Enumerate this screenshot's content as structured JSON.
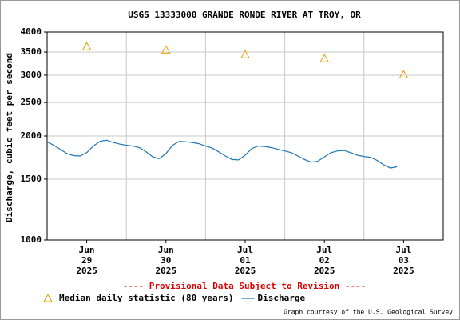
{
  "chart_data": {
    "type": "line",
    "title": "USGS 13333000 GRANDE RONDE RIVER AT TROY, OR",
    "ylabel": "Discharge, cubic feet per second",
    "notice": "---- Provisional Data Subject to Revision ----",
    "credit": "Graph courtesy of the U.S. Geological Survey",
    "log_y": true,
    "grid": true,
    "ylim": [
      1000,
      4000
    ],
    "yticks": [
      1000,
      1500,
      2000,
      2500,
      3000,
      3500,
      4000
    ],
    "xlim": [
      "2025-06-29T00:00",
      "2025-07-04T00:00"
    ],
    "xgrid": [
      "2025-06-30T00:00",
      "2025-07-01T00:00",
      "2025-07-02T00:00",
      "2025-07-03T00:00"
    ],
    "xticks": [
      {
        "value": "2025-06-29T12:00",
        "label": [
          "Jun",
          "29",
          "2025"
        ]
      },
      {
        "value": "2025-06-30T12:00",
        "label": [
          "Jun",
          "30",
          "2025"
        ]
      },
      {
        "value": "2025-07-01T12:00",
        "label": [
          "Jul",
          "01",
          "2025"
        ]
      },
      {
        "value": "2025-07-02T12:00",
        "label": [
          "Jul",
          "02",
          "2025"
        ]
      },
      {
        "value": "2025-07-03T12:00",
        "label": [
          "Jul",
          "03",
          "2025"
        ]
      }
    ],
    "series": [
      {
        "name": "Median daily statistic (80 years)",
        "color": "#e8a200",
        "marker": "triangle",
        "x": [
          "2025-06-29T12:00",
          "2025-06-30T12:00",
          "2025-07-01T12:00",
          "2025-07-02T12:00",
          "2025-07-03T12:00"
        ],
        "values": [
          3630,
          3550,
          3440,
          3350,
          3010
        ]
      },
      {
        "name": "Discharge",
        "color": "#1f77b4",
        "marker": "line",
        "x": [
          "2025-06-29T00:00",
          "2025-06-29T02:00",
          "2025-06-29T04:00",
          "2025-06-29T06:00",
          "2025-06-29T08:00",
          "2025-06-29T10:00",
          "2025-06-29T12:00",
          "2025-06-29T14:00",
          "2025-06-29T16:00",
          "2025-06-29T18:00",
          "2025-06-29T20:00",
          "2025-06-29T22:00",
          "2025-06-30T00:00",
          "2025-06-30T02:00",
          "2025-06-30T04:00",
          "2025-06-30T06:00",
          "2025-06-30T08:00",
          "2025-06-30T10:00",
          "2025-06-30T12:00",
          "2025-06-30T14:00",
          "2025-06-30T16:00",
          "2025-06-30T18:00",
          "2025-06-30T20:00",
          "2025-06-30T22:00",
          "2025-07-01T00:00",
          "2025-07-01T02:00",
          "2025-07-01T04:00",
          "2025-07-01T06:00",
          "2025-07-01T08:00",
          "2025-07-01T10:00",
          "2025-07-01T12:00",
          "2025-07-01T14:00",
          "2025-07-01T16:00",
          "2025-07-01T18:00",
          "2025-07-01T20:00",
          "2025-07-01T22:00",
          "2025-07-02T00:00",
          "2025-07-02T02:00",
          "2025-07-02T04:00",
          "2025-07-02T06:00",
          "2025-07-02T08:00",
          "2025-07-02T10:00",
          "2025-07-02T12:00",
          "2025-07-02T14:00",
          "2025-07-02T16:00",
          "2025-07-02T18:00",
          "2025-07-02T20:00",
          "2025-07-02T22:00",
          "2025-07-03T00:00",
          "2025-07-03T02:00",
          "2025-07-03T04:00",
          "2025-07-03T06:00",
          "2025-07-03T08:00",
          "2025-07-03T10:00"
        ],
        "values": [
          1925,
          1880,
          1830,
          1780,
          1755,
          1750,
          1790,
          1870,
          1930,
          1945,
          1915,
          1895,
          1880,
          1870,
          1850,
          1800,
          1740,
          1720,
          1780,
          1880,
          1930,
          1925,
          1915,
          1900,
          1870,
          1845,
          1800,
          1750,
          1710,
          1705,
          1760,
          1840,
          1870,
          1865,
          1850,
          1830,
          1810,
          1790,
          1750,
          1710,
          1680,
          1690,
          1740,
          1790,
          1810,
          1815,
          1790,
          1760,
          1745,
          1735,
          1700,
          1650,
          1615,
          1630
        ]
      }
    ]
  }
}
